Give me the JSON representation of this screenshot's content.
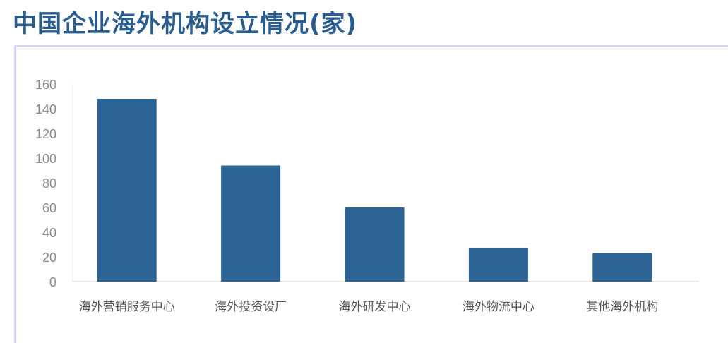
{
  "title": "中国企业海外机构设立情况(家)",
  "chart_data": {
    "type": "bar",
    "title": "中国企业海外机构设立情况(家)",
    "categories": [
      "海外营销服务中心",
      "海外投资设厂",
      "海外研发中心",
      "海外物流中心",
      "其他海外机构"
    ],
    "values": [
      148,
      94,
      60,
      27,
      23
    ],
    "ylim": [
      0,
      160
    ],
    "yticks": [
      0,
      20,
      40,
      60,
      80,
      100,
      120,
      140,
      160
    ],
    "grid": false,
    "bar_color": "#2c6496"
  }
}
